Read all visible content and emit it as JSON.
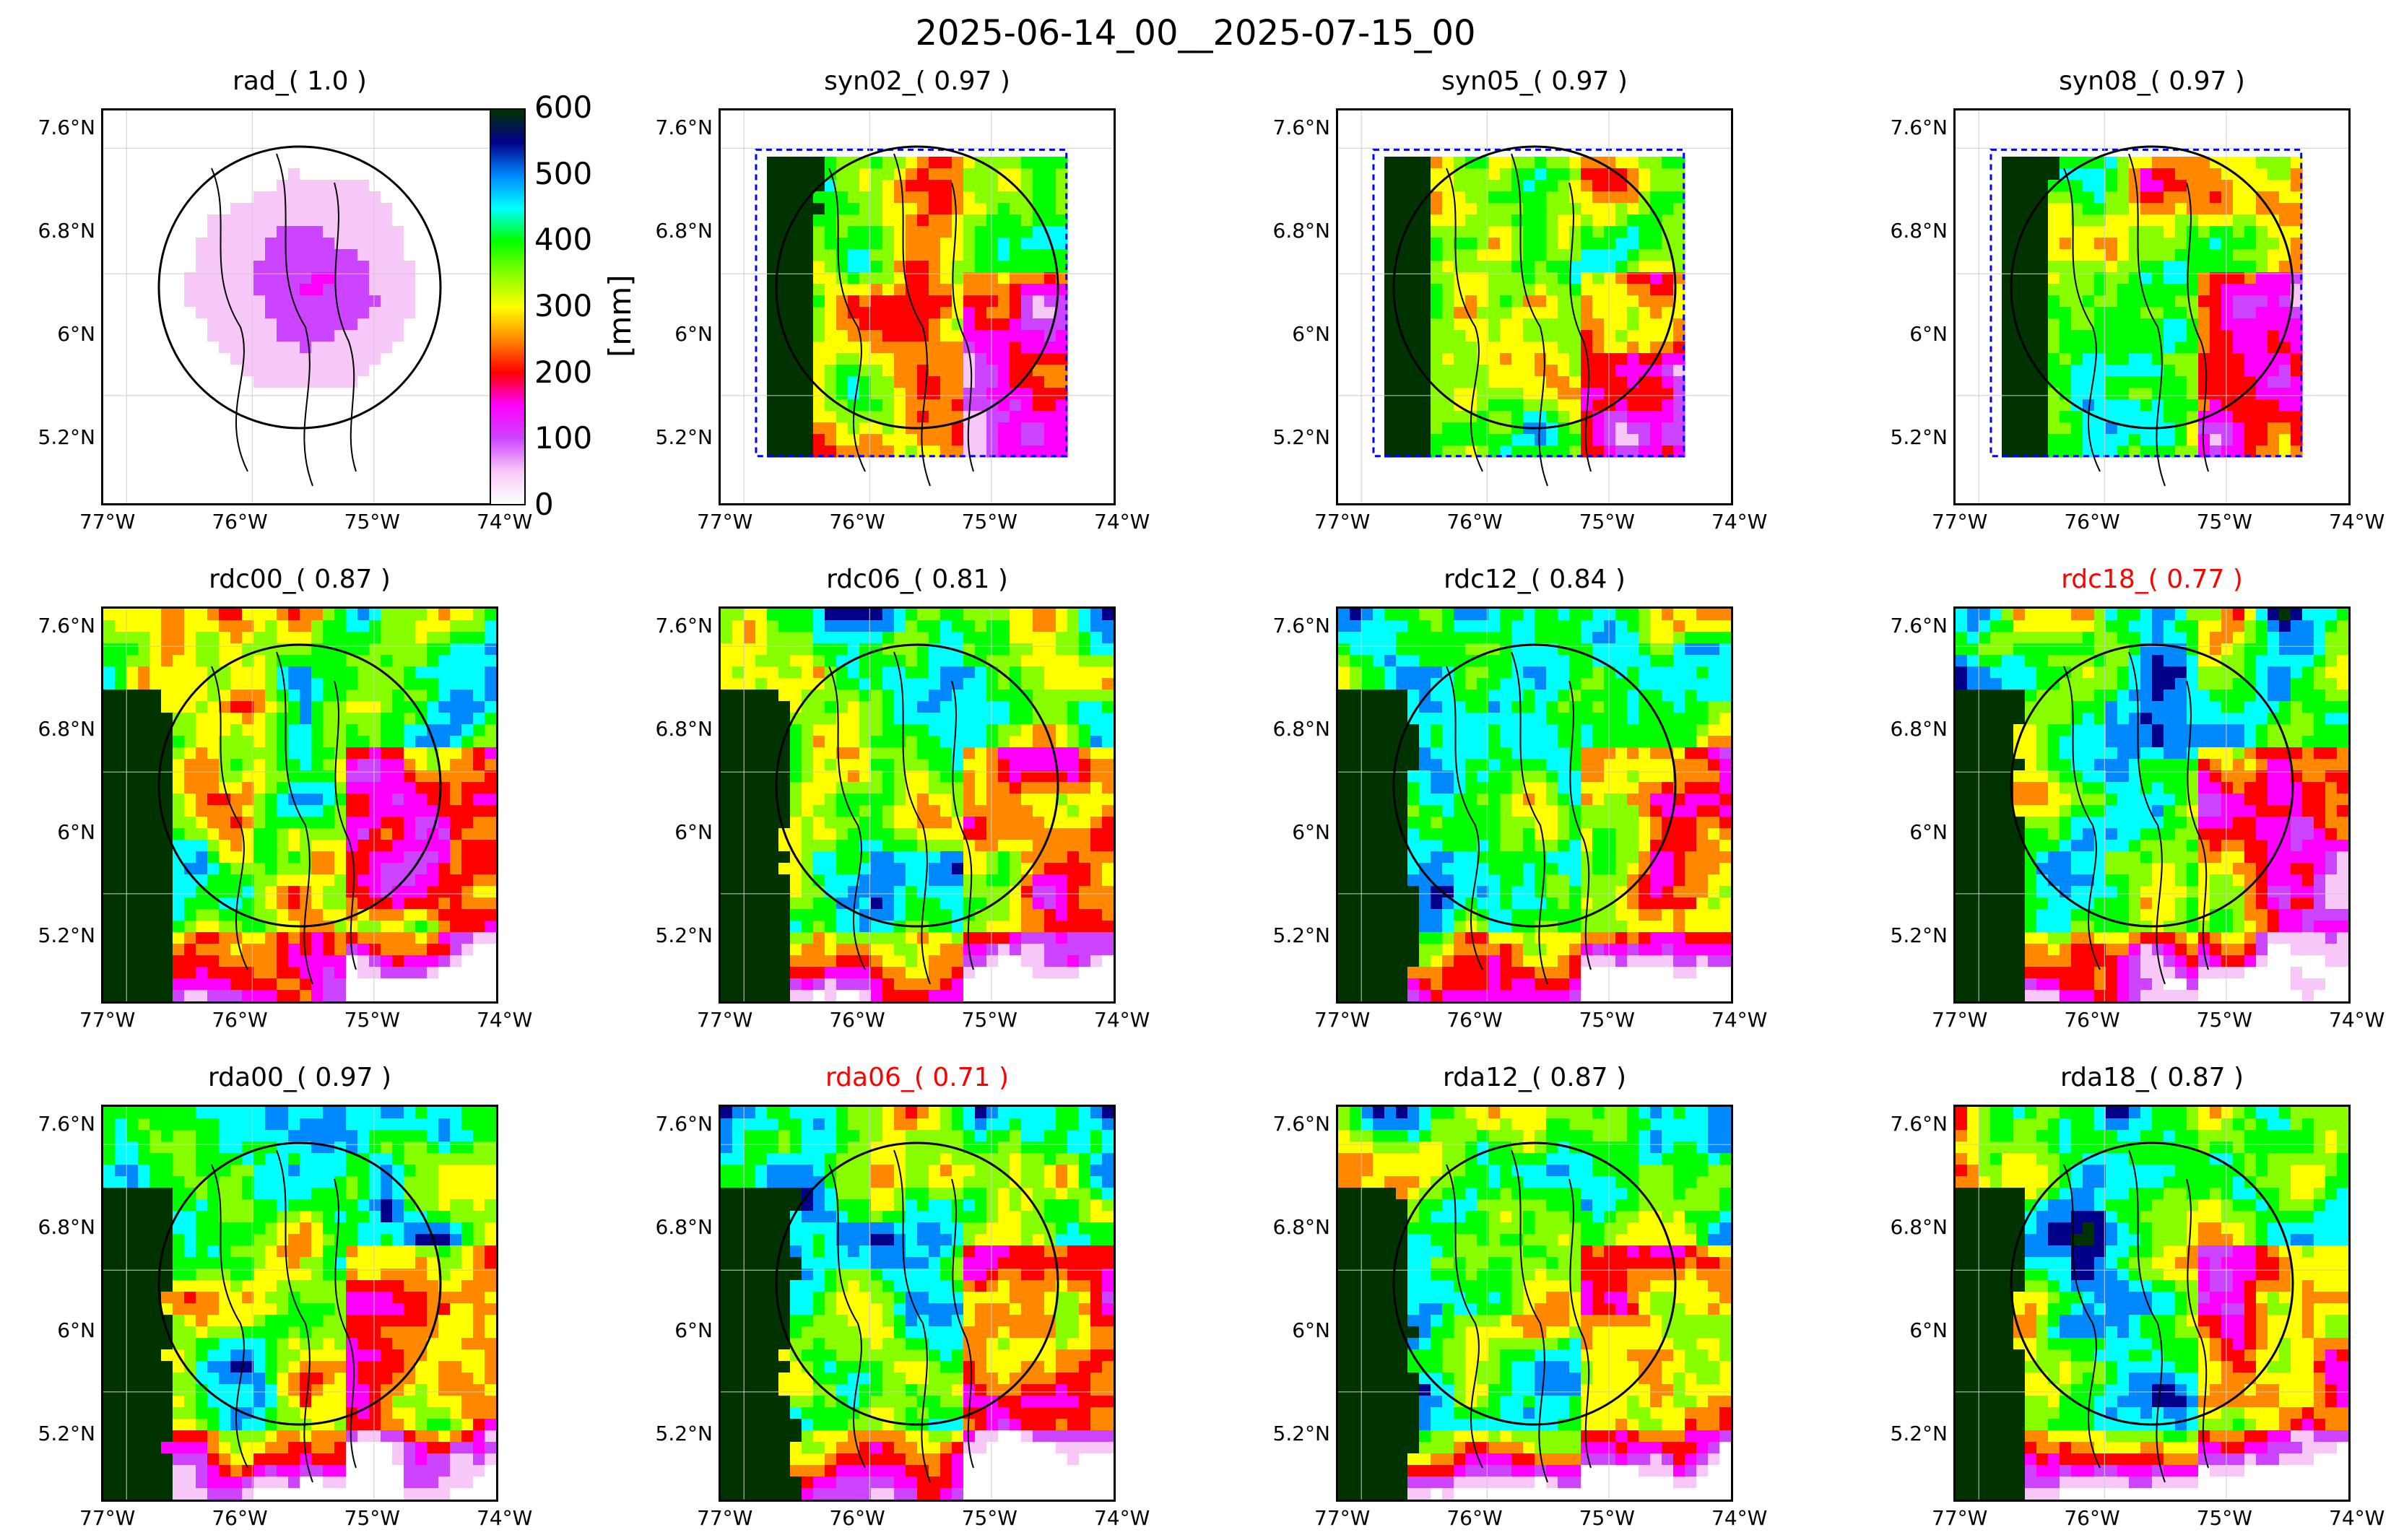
{
  "figure_title": "2025-06-14_00__2025-07-15_00",
  "colorbar": {
    "label": "[mm]",
    "ticks": [
      "0",
      "100",
      "200",
      "300",
      "400",
      "500",
      "600"
    ],
    "range": [
      0,
      600
    ],
    "colors": [
      "#ffffff",
      "#f7c8f7",
      "#cc44ff",
      "#ff00ff",
      "#ff0000",
      "#ff8800",
      "#ffff00",
      "#88ff00",
      "#00ff00",
      "#00ffff",
      "#0088ff",
      "#000088",
      "#003300"
    ]
  },
  "chart_data": [
    {
      "type": "heatmap",
      "title": "rad_( 1.0 )",
      "title_color": "#000000",
      "xticks": [
        "77°W",
        "76°W",
        "75°W",
        "74°W"
      ],
      "yticks": [
        "7.6°N",
        "6.8°N",
        "6°N",
        "5.2°N"
      ],
      "xlim": [
        -77,
        -74
      ],
      "ylim": [
        4.6,
        7.7
      ],
      "field": "radar"
    },
    {
      "type": "heatmap",
      "title": "syn02_( 0.97 )",
      "title_color": "#000000",
      "xticks": [
        "77°W",
        "76°W",
        "75°W",
        "74°W"
      ],
      "yticks": [
        "7.6°N",
        "6.8°N",
        "6°N",
        "5.2°N"
      ],
      "xlim": [
        -77,
        -74
      ],
      "ylim": [
        4.6,
        7.7
      ],
      "field": "syn"
    },
    {
      "type": "heatmap",
      "title": "syn05_( 0.97 )",
      "title_color": "#000000",
      "xticks": [
        "77°W",
        "76°W",
        "75°W",
        "74°W"
      ],
      "yticks": [
        "7.6°N",
        "6.8°N",
        "6°N",
        "5.2°N"
      ],
      "xlim": [
        -77,
        -74
      ],
      "ylim": [
        4.6,
        7.7
      ],
      "field": "syn"
    },
    {
      "type": "heatmap",
      "title": "syn08_( 0.97 )",
      "title_color": "#000000",
      "xticks": [
        "77°W",
        "76°W",
        "75°W",
        "74°W"
      ],
      "yticks": [
        "7.6°N",
        "6.8°N",
        "6°N",
        "5.2°N"
      ],
      "xlim": [
        -77,
        -74
      ],
      "ylim": [
        4.6,
        7.7
      ],
      "field": "syn"
    },
    {
      "type": "heatmap",
      "title": "rdc00_( 0.87 )",
      "title_color": "#000000",
      "xticks": [
        "77°W",
        "76°W",
        "75°W",
        "74°W"
      ],
      "yticks": [
        "7.6°N",
        "6.8°N",
        "6°N",
        "5.2°N"
      ],
      "xlim": [
        -77,
        -74
      ],
      "ylim": [
        4.6,
        7.7
      ],
      "field": "model"
    },
    {
      "type": "heatmap",
      "title": "rdc06_( 0.81 )",
      "title_color": "#000000",
      "xticks": [
        "77°W",
        "76°W",
        "75°W",
        "74°W"
      ],
      "yticks": [
        "7.6°N",
        "6.8°N",
        "6°N",
        "5.2°N"
      ],
      "xlim": [
        -77,
        -74
      ],
      "ylim": [
        4.6,
        7.7
      ],
      "field": "model"
    },
    {
      "type": "heatmap",
      "title": "rdc12_( 0.84 )",
      "title_color": "#000000",
      "xticks": [
        "77°W",
        "76°W",
        "75°W",
        "74°W"
      ],
      "yticks": [
        "7.6°N",
        "6.8°N",
        "6°N",
        "5.2°N"
      ],
      "xlim": [
        -77,
        -74
      ],
      "ylim": [
        4.6,
        7.7
      ],
      "field": "model"
    },
    {
      "type": "heatmap",
      "title": "rdc18_( 0.77 )",
      "title_color": "#ff0000",
      "xticks": [
        "77°W",
        "76°W",
        "75°W",
        "74°W"
      ],
      "yticks": [
        "7.6°N",
        "6.8°N",
        "6°N",
        "5.2°N"
      ],
      "xlim": [
        -77,
        -74
      ],
      "ylim": [
        4.6,
        7.7
      ],
      "field": "model"
    },
    {
      "type": "heatmap",
      "title": "rda00_( 0.97 )",
      "title_color": "#000000",
      "xticks": [
        "77°W",
        "76°W",
        "75°W",
        "74°W"
      ],
      "yticks": [
        "7.6°N",
        "6.8°N",
        "6°N",
        "5.2°N"
      ],
      "xlim": [
        -77,
        -74
      ],
      "ylim": [
        4.6,
        7.7
      ],
      "field": "model"
    },
    {
      "type": "heatmap",
      "title": "rda06_( 0.71 )",
      "title_color": "#ff0000",
      "xticks": [
        "77°W",
        "76°W",
        "75°W",
        "74°W"
      ],
      "yticks": [
        "7.6°N",
        "6.8°N",
        "6°N",
        "5.2°N"
      ],
      "xlim": [
        -77,
        -74
      ],
      "ylim": [
        4.6,
        7.7
      ],
      "field": "model"
    },
    {
      "type": "heatmap",
      "title": "rda12_( 0.87 )",
      "title_color": "#000000",
      "xticks": [
        "77°W",
        "76°W",
        "75°W",
        "74°W"
      ],
      "yticks": [
        "7.6°N",
        "6.8°N",
        "6°N",
        "5.2°N"
      ],
      "xlim": [
        -77,
        -74
      ],
      "ylim": [
        4.6,
        7.7
      ],
      "field": "model"
    },
    {
      "type": "heatmap",
      "title": "rda18_( 0.87 )",
      "title_color": "#000000",
      "xticks": [
        "77°W",
        "76°W",
        "75°W",
        "74°W"
      ],
      "yticks": [
        "7.6°N",
        "6.8°N",
        "6°N",
        "5.2°N"
      ],
      "xlim": [
        -77,
        -74
      ],
      "ylim": [
        4.6,
        7.7
      ],
      "field": "model"
    }
  ]
}
